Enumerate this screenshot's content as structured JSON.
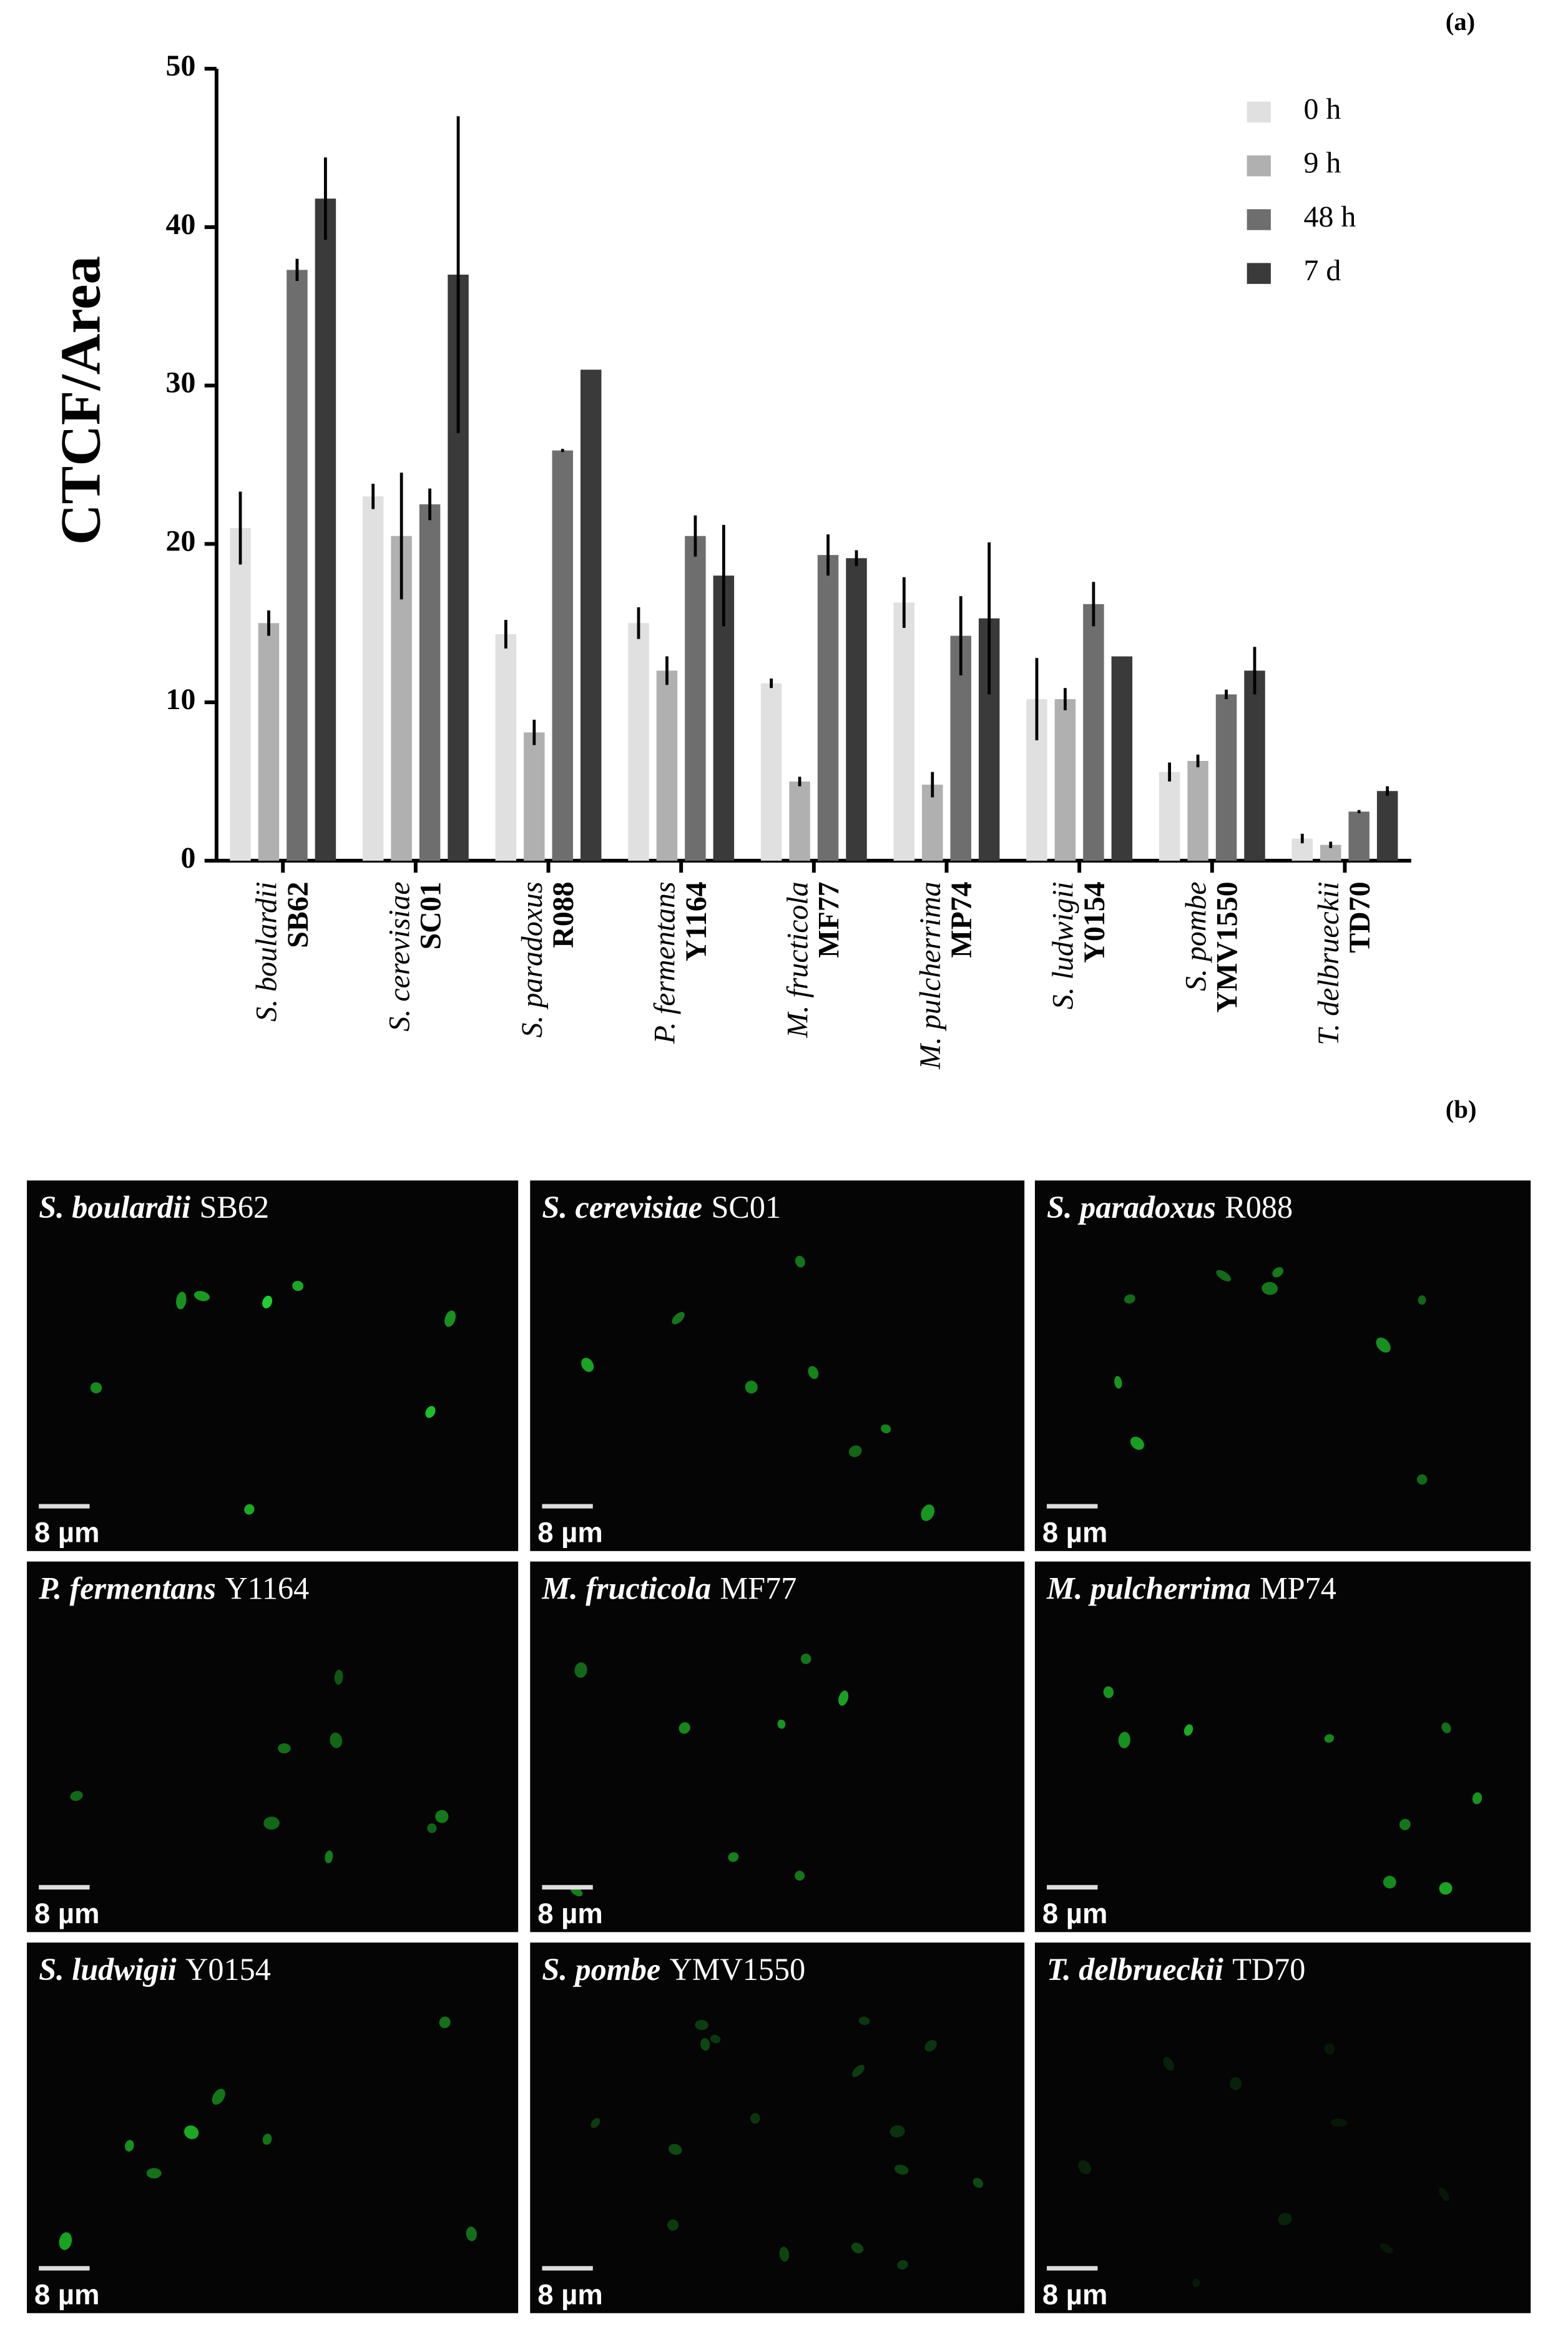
{
  "chart_data": {
    "type": "bar",
    "panel_label": "(a)",
    "y_label": "CTCF/Area",
    "categories": [
      {
        "species": "S. boulardii",
        "strain": "SB62"
      },
      {
        "species": "S. cerevisiae",
        "strain": "SC01"
      },
      {
        "species": "S. paradoxus",
        "strain": "R088"
      },
      {
        "species": "P. fermentans",
        "strain": "Y1164"
      },
      {
        "species": "M. fructicola",
        "strain": "MF77"
      },
      {
        "species": "M. pulcherrima",
        "strain": "MP74"
      },
      {
        "species": "S. ludwigii",
        "strain": "Y0154"
      },
      {
        "species": "S. pombe",
        "strain": "YMV1550"
      },
      {
        "species": "T. delbrueckii",
        "strain": "TD70"
      }
    ],
    "series": [
      {
        "name": "0 h",
        "color": "#e0e0e0",
        "values": [
          21,
          23,
          14.3,
          15,
          11.2,
          16.3,
          10.2,
          5.6,
          1.4
        ],
        "errors": [
          2.3,
          0.8,
          0.9,
          1,
          0.3,
          1.6,
          2.6,
          0.6,
          0.3
        ]
      },
      {
        "name": "9 h",
        "color": "#b0b0b0",
        "values": [
          15,
          20.5,
          8.1,
          12,
          5,
          4.8,
          10.2,
          6.3,
          1.0
        ],
        "errors": [
          0.8,
          4,
          0.8,
          0.9,
          0.3,
          0.8,
          0.7,
          0.4,
          0.2
        ]
      },
      {
        "name": "48 h",
        "color": "#6e6e6e",
        "values": [
          37.3,
          22.5,
          25.9,
          20.5,
          19.3,
          14.2,
          16.2,
          10.5,
          3.1
        ],
        "errors": [
          0.7,
          1,
          0.1,
          1.3,
          1.3,
          2.5,
          1.4,
          0.3,
          0.1
        ]
      },
      {
        "name": "7 d",
        "color": "#3a3a3a",
        "values": [
          41.8,
          37,
          31,
          18,
          19.1,
          15.3,
          12.9,
          12,
          4.4
        ],
        "errors": [
          2.6,
          10,
          0,
          3.2,
          0.5,
          4.8,
          0,
          1.5,
          0.3
        ]
      }
    ],
    "ylim": [
      0,
      50
    ],
    "yticks": [
      0,
      10,
      20,
      30,
      40,
      50
    ],
    "legend": "upper right"
  },
  "images": {
    "panel_label": "(b)",
    "scale_bar": "8 µm",
    "panels": [
      {
        "species": "S. boulardii",
        "strain": "SB62"
      },
      {
        "species": "S. cerevisiae",
        "strain": "SC01"
      },
      {
        "species": "S. paradoxus",
        "strain": "R088"
      },
      {
        "species": "P. fermentans",
        "strain": "Y1164"
      },
      {
        "species": "M. fructicola",
        "strain": "MF77"
      },
      {
        "species": "M. pulcherrima",
        "strain": "MP74"
      },
      {
        "species": "S. ludwigii",
        "strain": "Y0154"
      },
      {
        "species": "S. pombe",
        "strain": "YMV1550"
      },
      {
        "species": "T. delbrueckii",
        "strain": "TD70"
      }
    ]
  }
}
